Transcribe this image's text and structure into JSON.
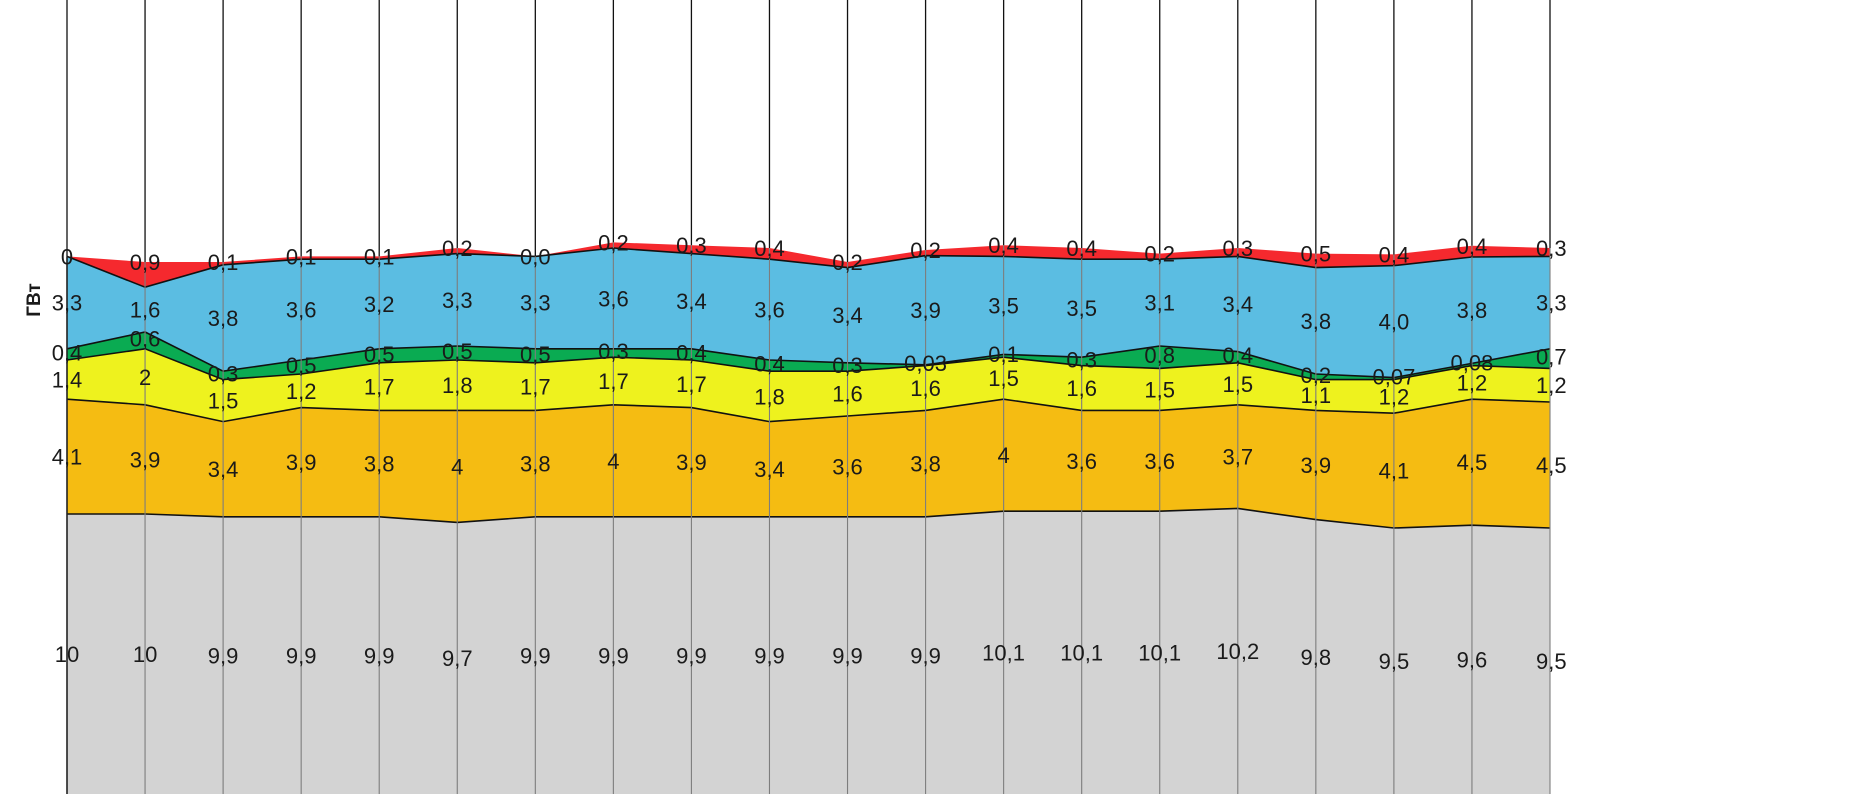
{
  "chart_data": {
    "type": "area",
    "stacked": true,
    "ylabel": "ГВт",
    "decimal_separator": ",",
    "categories_count": 20,
    "series": [
      {
        "color": "#d3d3d3",
        "values": [
          10,
          10,
          9.9,
          9.9,
          9.9,
          9.7,
          9.9,
          9.9,
          9.9,
          9.9,
          9.9,
          9.9,
          10.1,
          10.1,
          10.1,
          10.2,
          9.8,
          9.5,
          9.6,
          9.5
        ],
        "labels": [
          "10",
          "10",
          "9,9",
          "9,9",
          "9,9",
          "9,7",
          "9,9",
          "9,9",
          "9,9",
          "9,9",
          "9,9",
          "9,9",
          "10,1",
          "10,1",
          "10,1",
          "10,2",
          "9,8",
          "9,5",
          "9,6",
          "9,5"
        ]
      },
      {
        "color": "#f5bc12",
        "values": [
          4.1,
          3.9,
          3.4,
          3.9,
          3.8,
          4,
          3.8,
          4,
          3.9,
          3.4,
          3.6,
          3.8,
          4,
          3.6,
          3.6,
          3.7,
          3.9,
          4.1,
          4.5,
          4.5
        ],
        "labels": [
          "4,1",
          "3,9",
          "3,4",
          "3,9",
          "3,8",
          "4",
          "3,8",
          "4",
          "3,9",
          "3,4",
          "3,6",
          "3,8",
          "4",
          "3,6",
          "3,6",
          "3,7",
          "3,9",
          "4,1",
          "4,5",
          "4,5"
        ]
      },
      {
        "color": "#eef21e",
        "values": [
          1.4,
          2,
          1.5,
          1.2,
          1.7,
          1.8,
          1.7,
          1.7,
          1.7,
          1.8,
          1.6,
          1.6,
          1.5,
          1.6,
          1.5,
          1.5,
          1.1,
          1.2,
          1.2,
          1.2
        ],
        "labels": [
          "1,4",
          "2",
          "1,5",
          "1,2",
          "1,7",
          "1,8",
          "1,7",
          "1,7",
          "1,7",
          "1,8",
          "1,6",
          "1,6",
          "1,5",
          "1,6",
          "1,5",
          "1,5",
          "1,1",
          "1,2",
          "1,2",
          "1,2"
        ]
      },
      {
        "color": "#0aab52",
        "values": [
          0.4,
          0.6,
          0.3,
          0.5,
          0.5,
          0.5,
          0.5,
          0.3,
          0.4,
          0.4,
          0.3,
          0.03,
          0.1,
          0.3,
          0.8,
          0.4,
          0.2,
          0.07,
          0.08,
          0.7
        ],
        "labels": [
          "0,4",
          "0,6",
          "0,3",
          "0,5",
          "0,5",
          "0,5",
          "0,5",
          "0,3",
          "0,4",
          "0,4",
          "0,3",
          "0,03",
          "0,1",
          "0,3",
          "0,8",
          "0,4",
          "0,2",
          "0,07",
          "0,08",
          "0,7"
        ]
      },
      {
        "color": "#5bbde2",
        "values": [
          3.3,
          1.6,
          3.8,
          3.6,
          3.2,
          3.3,
          3.3,
          3.6,
          3.4,
          3.6,
          3.4,
          3.9,
          3.5,
          3.5,
          3.1,
          3.4,
          3.8,
          4.0,
          3.8,
          3.3
        ],
        "labels": [
          "3,3",
          "1,6",
          "3,8",
          "3,6",
          "3,2",
          "3,3",
          "3,3",
          "3,6",
          "3,4",
          "3,6",
          "3,4",
          "3,9",
          "3,5",
          "3,5",
          "3,1",
          "3,4",
          "3,8",
          "4,0",
          "3,8",
          "3,3"
        ]
      },
      {
        "color": "#f5292e",
        "values": [
          0,
          0.9,
          0.1,
          0.1,
          0.1,
          0.2,
          0.0,
          0.2,
          0.3,
          0.4,
          0.2,
          0.2,
          0.4,
          0.4,
          0.2,
          0.3,
          0.5,
          0.4,
          0.4,
          0.3
        ],
        "labels": [
          "0",
          "0,9",
          "0,1",
          "0,1",
          "0,1",
          "0,2",
          "0,0",
          "0,2",
          "0,3",
          "0,4",
          "0,2",
          "0,2",
          "0,4",
          "0,4",
          "0,2",
          "0,3",
          "0,5",
          "0,4",
          "0,4",
          "0,3"
        ]
      }
    ],
    "grid": "vertical",
    "legend": "none"
  }
}
